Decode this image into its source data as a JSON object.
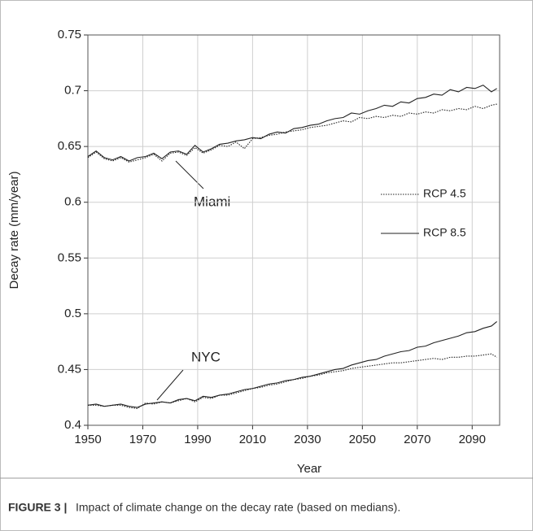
{
  "chart_data": {
    "type": "line",
    "xlabel": "Year",
    "ylabel": "Decay rate (mm/year)",
    "xlim": [
      1950,
      2100
    ],
    "xticks": [
      1950,
      1970,
      1990,
      2010,
      2030,
      2050,
      2070,
      2090
    ],
    "ylim": [
      0.4,
      0.75
    ],
    "yticks": [
      0.4,
      0.45,
      0.5,
      0.55,
      0.6,
      0.65,
      0.7,
      0.75
    ],
    "grid": true,
    "groups": [
      "Miami",
      "NYC"
    ],
    "x": [
      1950,
      1953,
      1956,
      1959,
      1962,
      1965,
      1968,
      1971,
      1974,
      1977,
      1980,
      1983,
      1986,
      1989,
      1992,
      1995,
      1998,
      2001,
      2004,
      2007,
      2010,
      2013,
      2016,
      2019,
      2022,
      2025,
      2028,
      2031,
      2034,
      2037,
      2040,
      2043,
      2046,
      2049,
      2052,
      2055,
      2058,
      2061,
      2064,
      2067,
      2070,
      2073,
      2076,
      2079,
      2082,
      2085,
      2088,
      2091,
      2094,
      2097,
      2099
    ],
    "series": [
      {
        "name": "RCP 4.5",
        "color": "#222222",
        "dash": "dotted",
        "values": [
          [
            0.64,
            0.645,
            0.639,
            0.637,
            0.64,
            0.636,
            0.638,
            0.64,
            0.643,
            0.637,
            0.644,
            0.645,
            0.642,
            0.649,
            0.644,
            0.647,
            0.651,
            0.65,
            0.654,
            0.648,
            0.657,
            0.658,
            0.66,
            0.661,
            0.663,
            0.664,
            0.665,
            0.667,
            0.668,
            0.669,
            0.671,
            0.673,
            0.672,
            0.676,
            0.675,
            0.677,
            0.676,
            0.678,
            0.677,
            0.68,
            0.679,
            0.681,
            0.68,
            0.683,
            0.682,
            0.684,
            0.683,
            0.686,
            0.684,
            0.687,
            0.688
          ],
          [
            0.418,
            0.418,
            0.417,
            0.418,
            0.418,
            0.416,
            0.415,
            0.42,
            0.419,
            0.421,
            0.42,
            0.422,
            0.424,
            0.421,
            0.425,
            0.424,
            0.427,
            0.427,
            0.429,
            0.431,
            0.433,
            0.434,
            0.436,
            0.437,
            0.439,
            0.441,
            0.442,
            0.444,
            0.445,
            0.447,
            0.448,
            0.449,
            0.451,
            0.452,
            0.453,
            0.454,
            0.455,
            0.456,
            0.456,
            0.457,
            0.458,
            0.459,
            0.46,
            0.459,
            0.461,
            0.461,
            0.462,
            0.462,
            0.463,
            0.464,
            0.461
          ]
        ]
      },
      {
        "name": "RCP 8.5",
        "color": "#222222",
        "dash": "solid",
        "values": [
          [
            0.641,
            0.646,
            0.64,
            0.638,
            0.641,
            0.637,
            0.64,
            0.641,
            0.644,
            0.639,
            0.645,
            0.646,
            0.643,
            0.651,
            0.645,
            0.648,
            0.652,
            0.653,
            0.655,
            0.656,
            0.658,
            0.657,
            0.661,
            0.663,
            0.662,
            0.666,
            0.667,
            0.669,
            0.67,
            0.673,
            0.675,
            0.676,
            0.68,
            0.679,
            0.682,
            0.684,
            0.687,
            0.686,
            0.69,
            0.689,
            0.693,
            0.694,
            0.697,
            0.696,
            0.701,
            0.699,
            0.703,
            0.702,
            0.705,
            0.699,
            0.702
          ],
          [
            0.418,
            0.419,
            0.417,
            0.418,
            0.419,
            0.417,
            0.416,
            0.419,
            0.42,
            0.421,
            0.42,
            0.423,
            0.424,
            0.422,
            0.426,
            0.425,
            0.427,
            0.428,
            0.43,
            0.432,
            0.433,
            0.435,
            0.437,
            0.438,
            0.44,
            0.441,
            0.443,
            0.444,
            0.446,
            0.448,
            0.45,
            0.451,
            0.454,
            0.456,
            0.458,
            0.459,
            0.462,
            0.464,
            0.466,
            0.467,
            0.47,
            0.471,
            0.474,
            0.476,
            0.478,
            0.48,
            0.483,
            0.484,
            0.487,
            0.489,
            0.493
          ]
        ]
      }
    ],
    "figure_label": "FIGURE 3 |",
    "caption": "Impact of climate change on the decay rate (based on medians)."
  }
}
